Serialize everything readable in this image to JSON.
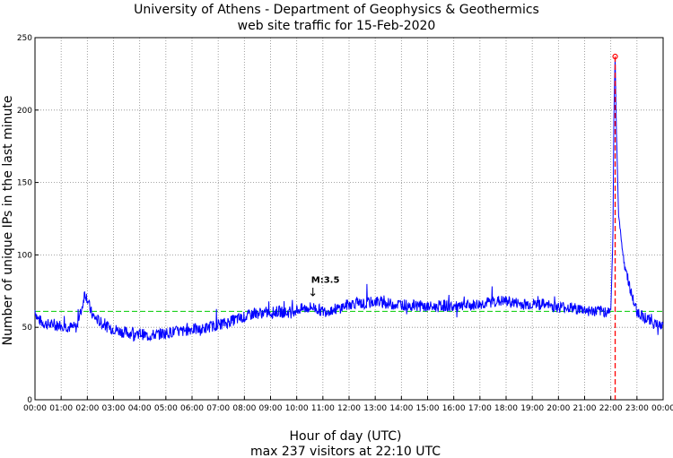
{
  "chart_data": {
    "type": "line",
    "title": "University of Athens - Department of Geophysics & Geothermics",
    "subtitle": "web site traffic for 15-Feb-2020",
    "xlabel": "Hour of day (UTC)",
    "summary": "max 237 visitors at 22:10 UTC",
    "ylabel": "Number of unique IPs in the last minute",
    "xlim": [
      0,
      24
    ],
    "ylim": [
      0,
      250
    ],
    "xticks": [
      "00:00",
      "01:00",
      "02:00",
      "03:00",
      "04:00",
      "05:00",
      "06:00",
      "07:00",
      "08:00",
      "09:00",
      "10:00",
      "11:00",
      "12:00",
      "13:00",
      "14:00",
      "15:00",
      "16:00",
      "17:00",
      "18:00",
      "19:00",
      "20:00",
      "21:00",
      "22:00",
      "23:00",
      "00:00"
    ],
    "yticks": [
      "0",
      "50",
      "100",
      "150",
      "200",
      "250"
    ],
    "grid": true,
    "mean_level": 61,
    "series": [
      {
        "name": "visitors",
        "x": [
          0,
          0.1,
          0.3,
          0.5,
          0.8,
          1.0,
          1.3,
          1.6,
          1.8,
          1.9,
          2.0,
          2.1,
          2.2,
          2.4,
          2.6,
          2.8,
          3.0,
          3.3,
          3.6,
          4.0,
          4.3,
          4.6,
          5.0,
          5.3,
          5.6,
          6.0,
          6.3,
          6.6,
          7.0,
          7.3,
          7.6,
          8.0,
          8.3,
          8.6,
          9.0,
          9.3,
          9.6,
          10.0,
          10.3,
          10.6,
          11.0,
          11.3,
          11.6,
          12.0,
          12.3,
          12.6,
          13.0,
          13.3,
          13.6,
          14.0,
          14.3,
          14.6,
          15.0,
          15.3,
          15.6,
          16.0,
          16.3,
          16.6,
          17.0,
          17.3,
          17.6,
          18.0,
          18.3,
          18.6,
          19.0,
          19.3,
          19.6,
          20.0,
          20.3,
          20.6,
          21.0,
          21.3,
          21.6,
          21.9,
          22.0,
          22.08,
          22.12,
          22.167,
          22.22,
          22.3,
          22.4,
          22.5,
          22.6,
          22.7,
          22.8,
          22.9,
          23.0,
          23.2,
          23.4,
          23.6,
          23.8,
          24.0
        ],
        "y": [
          62,
          56,
          53,
          52,
          51,
          52,
          50,
          50,
          64,
          74,
          70,
          63,
          58,
          55,
          52,
          50,
          49,
          47,
          46,
          46,
          44,
          45,
          46,
          47,
          47,
          49,
          48,
          50,
          52,
          53,
          55,
          57,
          59,
          60,
          60,
          61,
          60,
          62,
          63,
          64,
          61,
          62,
          63,
          66,
          67,
          66,
          68,
          67,
          66,
          66,
          65,
          65,
          64,
          64,
          65,
          64,
          64,
          65,
          66,
          67,
          68,
          68,
          67,
          66,
          66,
          66,
          65,
          64,
          64,
          63,
          62,
          61,
          61,
          61,
          62,
          110,
          200,
          237,
          180,
          128,
          110,
          96,
          88,
          80,
          72,
          66,
          61,
          58,
          56,
          53,
          52,
          50
        ]
      }
    ],
    "max_marker": {
      "x": 22.167,
      "y": 237
    },
    "annotation": {
      "label": "M:3.5",
      "x": 10.62,
      "y": 72
    }
  },
  "colors": {
    "line": "#0000ff",
    "mean": "#00cc00",
    "vline": "#ff0000",
    "marker": "#ff0000"
  }
}
